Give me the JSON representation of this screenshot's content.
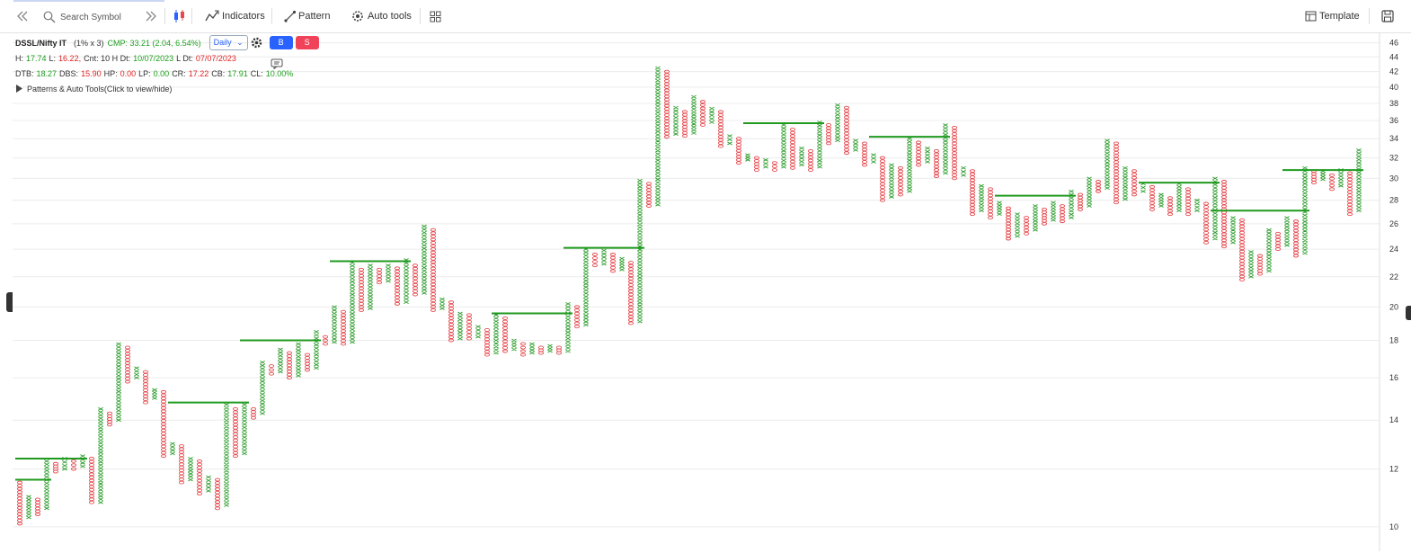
{
  "toolbar": {
    "search_placeholder": "Search Symbol",
    "indicators": "Indicators",
    "pattern": "Pattern",
    "auto_tools": "Auto tools",
    "template": "Template"
  },
  "header": {
    "symbol": "DSSL/Nifty IT",
    "box": "(1% x 3)",
    "cmp": "CMP: 33.21 (2.04, 6.54%)",
    "interval": "Daily",
    "buy": "B",
    "sell": "S",
    "stats1": [
      {
        "text": "H:",
        "color": "#333"
      },
      {
        "text": "17.74",
        "color": "#1e9e1e"
      },
      {
        "text": "L:",
        "color": "#333"
      },
      {
        "text": "16.22,",
        "color": "#e02424"
      },
      {
        "text": "Cnt: 10 H Dt:",
        "color": "#333"
      },
      {
        "text": "10/07/2023",
        "color": "#1e9e1e"
      },
      {
        "text": "L Dt:",
        "color": "#333"
      },
      {
        "text": "07/07/2023",
        "color": "#e02424"
      }
    ],
    "stats2": [
      {
        "text": "DTB:",
        "color": "#333"
      },
      {
        "text": "18.27",
        "color": "#1e9e1e"
      },
      {
        "text": "DBS:",
        "color": "#333"
      },
      {
        "text": "15.90",
        "color": "#e02424"
      },
      {
        "text": "HP:",
        "color": "#333"
      },
      {
        "text": "0.00",
        "color": "#e02424"
      },
      {
        "text": "LP:",
        "color": "#333"
      },
      {
        "text": "0.00",
        "color": "#1e9e1e"
      },
      {
        "text": "CR:",
        "color": "#333"
      },
      {
        "text": "17.22",
        "color": "#e02424"
      },
      {
        "text": "CB:",
        "color": "#333"
      },
      {
        "text": "17.91",
        "color": "#1e9e1e"
      },
      {
        "text": "CL:",
        "color": "#333"
      },
      {
        "text": "10.00%",
        "color": "#1e9e1e"
      }
    ],
    "patterns": "Patterns & Auto Tools(Click to view/hide)"
  },
  "chart_data": {
    "type": "pnf",
    "log_scale": true,
    "grid": true,
    "ylim": [
      9.26,
      47.4
    ],
    "yticks": [
      10,
      12,
      14,
      16,
      18,
      20,
      22,
      24,
      26,
      28,
      30,
      32,
      34,
      36,
      38,
      40,
      42,
      44,
      46
    ],
    "first_column_type": "O",
    "x_color": "#2f9e2f",
    "o_color": "#e5484d",
    "line_color": "#1f9a1f",
    "columns": [
      [
        10.1,
        11.5
      ],
      [
        10.3,
        11.0
      ],
      [
        10.4,
        10.9
      ],
      [
        10.6,
        12.3
      ],
      [
        11.9,
        12.2
      ],
      [
        12.0,
        12.4
      ],
      [
        12.0,
        12.3
      ],
      [
        12.1,
        12.5
      ],
      [
        10.8,
        12.4
      ],
      [
        10.8,
        14.5
      ],
      [
        13.8,
        14.3
      ],
      [
        14.0,
        17.8
      ],
      [
        15.8,
        17.6
      ],
      [
        16.0,
        16.5
      ],
      [
        14.8,
        16.3
      ],
      [
        15.0,
        15.4
      ],
      [
        12.5,
        15.3
      ],
      [
        12.6,
        13.0
      ],
      [
        11.5,
        12.9
      ],
      [
        11.6,
        12.4
      ],
      [
        11.1,
        12.3
      ],
      [
        11.2,
        11.7
      ],
      [
        10.6,
        11.6
      ],
      [
        10.7,
        14.7
      ],
      [
        12.5,
        14.5
      ],
      [
        12.6,
        14.7
      ],
      [
        14.1,
        14.5
      ],
      [
        14.3,
        16.8
      ],
      [
        16.2,
        16.6
      ],
      [
        16.3,
        17.5
      ],
      [
        16.0,
        17.3
      ],
      [
        16.1,
        17.8
      ],
      [
        16.4,
        17.2
      ],
      [
        16.5,
        18.5
      ],
      [
        17.8,
        18.2
      ],
      [
        17.9,
        20.0
      ],
      [
        17.8,
        19.7
      ],
      [
        17.9,
        23.0
      ],
      [
        19.8,
        22.5
      ],
      [
        19.9,
        22.8
      ],
      [
        21.6,
        22.5
      ],
      [
        21.7,
        22.8
      ],
      [
        20.2,
        22.6
      ],
      [
        20.3,
        23.2
      ],
      [
        20.8,
        22.8
      ],
      [
        20.9,
        25.8
      ],
      [
        19.8,
        25.5
      ],
      [
        19.9,
        20.5
      ],
      [
        18.0,
        20.3
      ],
      [
        18.1,
        19.6
      ],
      [
        18.1,
        19.5
      ],
      [
        18.2,
        18.8
      ],
      [
        17.2,
        18.6
      ],
      [
        17.3,
        19.5
      ],
      [
        17.4,
        19.3
      ],
      [
        17.5,
        18.0
      ],
      [
        17.2,
        17.8
      ],
      [
        17.3,
        17.8
      ],
      [
        17.3,
        17.6
      ],
      [
        17.4,
        17.7
      ],
      [
        17.3,
        17.6
      ],
      [
        17.4,
        20.2
      ],
      [
        18.8,
        20.0
      ],
      [
        18.9,
        24.0
      ],
      [
        22.8,
        23.6
      ],
      [
        22.9,
        23.9
      ],
      [
        22.4,
        23.6
      ],
      [
        22.5,
        23.3
      ],
      [
        19.0,
        23.0
      ],
      [
        19.1,
        29.8
      ],
      [
        27.5,
        29.5
      ],
      [
        27.6,
        42.5
      ],
      [
        34.2,
        42.0
      ],
      [
        34.5,
        37.5
      ],
      [
        34.3,
        37.0
      ],
      [
        34.6,
        38.8
      ],
      [
        35.5,
        38.2
      ],
      [
        35.8,
        37.4
      ],
      [
        33.2,
        37.0
      ],
      [
        33.5,
        34.3
      ],
      [
        31.5,
        34.0
      ],
      [
        31.8,
        32.3
      ],
      [
        30.8,
        32.0
      ],
      [
        31.1,
        31.8
      ],
      [
        30.8,
        31.5
      ],
      [
        31.1,
        35.5
      ],
      [
        31.0,
        35.0
      ],
      [
        31.3,
        33.0
      ],
      [
        30.8,
        32.7
      ],
      [
        31.1,
        35.8
      ],
      [
        33.5,
        35.5
      ],
      [
        33.8,
        37.8
      ],
      [
        32.5,
        37.5
      ],
      [
        32.8,
        33.8
      ],
      [
        31.3,
        33.5
      ],
      [
        31.6,
        32.3
      ],
      [
        28.0,
        32.0
      ],
      [
        28.3,
        31.3
      ],
      [
        28.5,
        31.0
      ],
      [
        28.8,
        34.0
      ],
      [
        31.3,
        33.6
      ],
      [
        31.6,
        33.0
      ],
      [
        30.2,
        32.7
      ],
      [
        30.5,
        35.5
      ],
      [
        30.0,
        35.2
      ],
      [
        30.3,
        31.0
      ],
      [
        26.8,
        30.7
      ],
      [
        27.1,
        29.3
      ],
      [
        26.5,
        29.0
      ],
      [
        26.8,
        27.8
      ],
      [
        24.8,
        27.3
      ],
      [
        25.0,
        26.8
      ],
      [
        25.2,
        26.5
      ],
      [
        25.5,
        27.5
      ],
      [
        26.0,
        27.2
      ],
      [
        26.3,
        27.8
      ],
      [
        26.2,
        27.5
      ],
      [
        26.5,
        28.8
      ],
      [
        27.2,
        28.5
      ],
      [
        27.5,
        30.0
      ],
      [
        28.8,
        29.7
      ],
      [
        29.1,
        33.8
      ],
      [
        27.8,
        33.5
      ],
      [
        28.1,
        31.0
      ],
      [
        28.5,
        30.7
      ],
      [
        28.8,
        29.5
      ],
      [
        27.2,
        29.2
      ],
      [
        27.5,
        28.5
      ],
      [
        26.8,
        28.2
      ],
      [
        27.1,
        29.5
      ],
      [
        26.8,
        29.0
      ],
      [
        27.1,
        28.0
      ],
      [
        24.5,
        27.7
      ],
      [
        24.8,
        30.0
      ],
      [
        24.2,
        29.7
      ],
      [
        24.5,
        26.5
      ],
      [
        21.8,
        26.3
      ],
      [
        22.0,
        23.8
      ],
      [
        22.2,
        23.5
      ],
      [
        22.4,
        25.5
      ],
      [
        24.0,
        25.2
      ],
      [
        24.3,
        26.5
      ],
      [
        23.5,
        26.2
      ],
      [
        23.7,
        31.0
      ],
      [
        29.6,
        30.7
      ],
      [
        29.9,
        30.7
      ],
      [
        29.0,
        30.3
      ],
      [
        29.3,
        30.8
      ],
      [
        26.8,
        30.5
      ],
      [
        27.1,
        32.8
      ]
    ],
    "trend_lines": [
      {
        "level": 11.6,
        "from": 0,
        "to": 3
      },
      {
        "level": 12.4,
        "from": 0,
        "to": 7
      },
      {
        "level": 14.8,
        "from": 17,
        "to": 25
      },
      {
        "level": 18.0,
        "from": 25,
        "to": 33
      },
      {
        "level": 23.1,
        "from": 35,
        "to": 43
      },
      {
        "level": 19.6,
        "from": 53,
        "to": 61
      },
      {
        "level": 24.1,
        "from": 61,
        "to": 69
      },
      {
        "level": 35.7,
        "from": 81,
        "to": 89
      },
      {
        "level": 34.2,
        "from": 95,
        "to": 103
      },
      {
        "level": 28.4,
        "from": 109,
        "to": 117
      },
      {
        "level": 29.6,
        "from": 125,
        "to": 133
      },
      {
        "level": 27.1,
        "from": 133,
        "to": 143
      },
      {
        "level": 30.8,
        "from": 141,
        "to": 149
      }
    ]
  }
}
